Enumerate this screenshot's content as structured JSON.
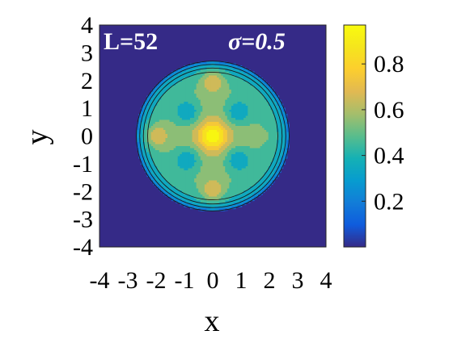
{
  "chart_data": {
    "type": "heatmap",
    "subtype": "filled-contour",
    "annotations": [
      "L=52",
      "σ=0.5"
    ],
    "xlabel": "x",
    "ylabel": "y",
    "xlim": [
      -4,
      4
    ],
    "ylim": [
      -4,
      4
    ],
    "x_ticks": [
      "-4",
      "-3",
      "-2",
      "-1",
      "0",
      "1",
      "2",
      "3",
      "4"
    ],
    "y_ticks": [
      "4",
      "3",
      "2",
      "1",
      "0",
      "-1",
      "-2",
      "-3",
      "-4"
    ],
    "colorbar": {
      "colormap": "parula",
      "range": [
        0,
        0.97
      ],
      "ticks": [
        "0.8",
        "0.6",
        "0.4",
        "0.2"
      ],
      "tick_values": [
        0.8,
        0.6,
        0.4,
        0.2
      ]
    },
    "features": {
      "disc_radius": 2.7,
      "center_peak": {
        "x": 0,
        "y": 0,
        "value": 0.97
      },
      "ring_minima": [
        {
          "x": 0.9,
          "y": 0.85,
          "value": 0.38
        },
        {
          "x": -0.9,
          "y": 0.85,
          "value": 0.38
        },
        {
          "x": 0.9,
          "y": -0.85,
          "value": 0.38
        },
        {
          "x": -0.9,
          "y": -0.85,
          "value": 0.38
        }
      ],
      "outer_maxima": [
        {
          "x": 0,
          "y": 2.0,
          "value": 0.82
        },
        {
          "x": 0,
          "y": -2.0,
          "value": 0.82
        },
        {
          "x": -2.0,
          "y": 0,
          "value": 0.8
        }
      ],
      "small_feature": {
        "x": 1.9,
        "y": 0,
        "value": 0.6
      }
    },
    "background_color": "#352a87"
  }
}
